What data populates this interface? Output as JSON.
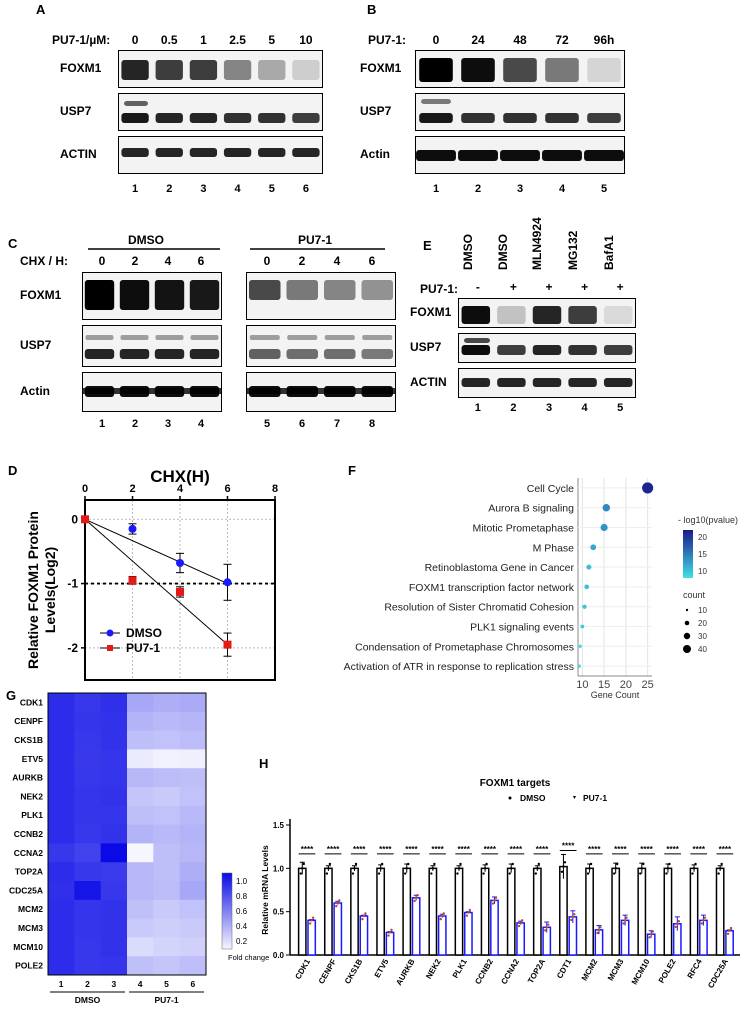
{
  "panel_a": {
    "letter": "A",
    "treatment_label": "PU7-1/µM:",
    "doses": [
      "0",
      "0.5",
      "1",
      "2.5",
      "5",
      "10"
    ],
    "blots": [
      "FOXM1",
      "USP7",
      "ACTIN"
    ],
    "lanes": [
      "1",
      "2",
      "3",
      "4",
      "5",
      "6"
    ]
  },
  "panel_b": {
    "letter": "B",
    "treatment_label": "PU7-1:",
    "times": [
      "0",
      "24",
      "48",
      "72",
      "96h"
    ],
    "blots": [
      "FOXM1",
      "USP7",
      "Actin"
    ],
    "lanes": [
      "1",
      "2",
      "3",
      "4",
      "5"
    ]
  },
  "panel_c": {
    "letter": "C",
    "group_dmso": "DMSO",
    "group_pu": "PU7-1",
    "chx_label": "CHX / H:",
    "times": [
      "0",
      "2",
      "4",
      "6",
      "0",
      "2",
      "4",
      "6"
    ],
    "blots": [
      "FOXM1",
      "USP7",
      "Actin"
    ],
    "lanes": [
      "1",
      "2",
      "3",
      "4",
      "5",
      "6",
      "7",
      "8"
    ]
  },
  "panel_e": {
    "letter": "E",
    "columns": [
      "DMSO",
      "DMSO",
      "MLN4924",
      "MG132",
      "BafA1"
    ],
    "pu_label": "PU7-1:",
    "pu_signs": [
      "-",
      "+",
      "+",
      "+",
      "+"
    ],
    "blots": [
      "FOXM1",
      "USP7",
      "ACTIN"
    ],
    "lanes": [
      "1",
      "2",
      "3",
      "4",
      "5"
    ]
  },
  "panel_d": {
    "letter": "D",
    "xlabel": "CHX(H)",
    "ylabel_1": "Relative FOXM1 Protein",
    "ylabel_2": "Levels(Log2)",
    "legend_dmso": "DMSO",
    "legend_pu": "PU7-1",
    "xticks": [
      "0",
      "2",
      "4",
      "6",
      "8"
    ],
    "yticks": [
      "0",
      "-1",
      "-2"
    ]
  },
  "panel_f": {
    "letter": "F",
    "terms": [
      "Cell Cycle",
      "Aurora B signaling",
      "Mitotic Prometaphase",
      "M Phase",
      "Retinoblastoma Gene in Cancer",
      "FOXM1 transcription factor network",
      "Resolution of Sister Chromatid Cohesion",
      "PLK1 signaling events",
      "Condensation of Prometaphase Chromosomes",
      "Activation of ATR in response to replication stress"
    ],
    "xlabel": "Gene Count",
    "xticks": [
      "10",
      "15",
      "20",
      "25"
    ],
    "legend_color_title": "- log10(pvalue)",
    "legend_color_ticks": [
      "20",
      "15",
      "10"
    ],
    "legend_size_title": "count",
    "legend_size_ticks": [
      "10",
      "20",
      "30",
      "40"
    ]
  },
  "panel_g": {
    "letter": "G",
    "genes": [
      "CDK1",
      "CENPF",
      "CKS1B",
      "ETV5",
      "AURKB",
      "NEK2",
      "PLK1",
      "CCNB2",
      "CCNA2",
      "TOP2A",
      "CDC25A",
      "MCM2",
      "MCM3",
      "MCM10",
      "POLE2"
    ],
    "columns": [
      "1",
      "2",
      "3",
      "4",
      "5",
      "6"
    ],
    "group_dmso": "DMSO",
    "group_pu": "PU7-1",
    "scale_ticks": [
      "1.0",
      "0.8",
      "0.6",
      "0.4",
      "0.2"
    ],
    "scale_label": "Fold change"
  },
  "panel_h": {
    "letter": "H",
    "title": "FOXM1 targets",
    "ylabel": "Relative mRNA Levels",
    "yticks": [
      "0.0",
      "0.5",
      "1.0",
      "1.5"
    ],
    "legend_dmso": "DMSO",
    "legend_pu": "PU7-1",
    "sig": "****"
  },
  "chart_data": [
    {
      "type": "line",
      "title": "",
      "xlabel": "CHX(H)",
      "ylabel": "Relative FOXM1 Protein Levels(Log2)",
      "xlim": [
        0,
        8
      ],
      "ylim": [
        -2.5,
        0.3
      ],
      "series": [
        {
          "name": "DMSO",
          "color": "#1a1aff",
          "x": [
            0,
            2,
            4,
            6
          ],
          "y": [
            0,
            -0.15,
            -0.68,
            -0.98
          ],
          "err": [
            0,
            0.08,
            0.15,
            0.28
          ],
          "fit": [
            [
              0,
              0
            ],
            [
              6,
              -1.0
            ]
          ]
        },
        {
          "name": "PU7-1",
          "color": "#e61919",
          "x": [
            0,
            2,
            4,
            6
          ],
          "y": [
            0,
            -0.95,
            -1.13,
            -1.95
          ],
          "err": [
            0,
            0.06,
            0.08,
            0.18
          ],
          "fit": [
            [
              0,
              0
            ],
            [
              6,
              -1.95
            ]
          ]
        }
      ],
      "reference_line_y": -1
    },
    {
      "type": "scatter",
      "title": "",
      "xlabel": "Gene Count",
      "xlim": [
        9,
        26
      ],
      "categories": [
        "Cell Cycle",
        "Aurora B signaling",
        "Mitotic Prometaphase",
        "M Phase",
        "Retinoblastoma Gene in Cancer",
        "FOXM1 transcription factor network",
        "Resolution of Sister Chromatid Cohesion",
        "PLK1 signaling events",
        "Condensation of Prometaphase Chromosomes",
        "Activation of ATR in response to replication stress"
      ],
      "gene_count": [
        25,
        15.5,
        15,
        12.5,
        11.5,
        11,
        10.5,
        10,
        9.5,
        9.3
      ],
      "neg_log10_p": [
        25,
        16,
        15,
        13,
        11,
        11,
        10.5,
        10,
        9,
        9
      ]
    },
    {
      "type": "heatmap",
      "rows": [
        "CDK1",
        "CENPF",
        "CKS1B",
        "ETV5",
        "AURKB",
        "NEK2",
        "PLK1",
        "CCNB2",
        "CCNA2",
        "TOP2A",
        "CDC25A",
        "MCM2",
        "MCM3",
        "MCM10",
        "POLE2"
      ],
      "columns": [
        "1",
        "2",
        "3",
        "4",
        "5",
        "6"
      ],
      "values": [
        [
          1.0,
          0.95,
          0.98,
          0.45,
          0.42,
          0.44
        ],
        [
          1.0,
          0.96,
          0.97,
          0.4,
          0.37,
          0.39
        ],
        [
          1.0,
          0.95,
          0.97,
          0.35,
          0.33,
          0.36
        ],
        [
          1.0,
          0.94,
          0.96,
          0.15,
          0.12,
          0.13
        ],
        [
          1.0,
          0.95,
          0.96,
          0.38,
          0.36,
          0.35
        ],
        [
          1.0,
          0.96,
          0.97,
          0.32,
          0.3,
          0.33
        ],
        [
          1.0,
          0.96,
          0.96,
          0.35,
          0.33,
          0.37
        ],
        [
          1.0,
          0.95,
          0.97,
          0.4,
          0.37,
          0.4
        ],
        [
          0.95,
          0.9,
          1.15,
          0.05,
          0.35,
          0.38
        ],
        [
          1.0,
          0.95,
          0.93,
          0.38,
          0.35,
          0.42
        ],
        [
          0.98,
          1.1,
          0.95,
          0.38,
          0.36,
          0.45
        ],
        [
          1.0,
          0.96,
          0.97,
          0.34,
          0.3,
          0.33
        ],
        [
          1.0,
          0.96,
          0.97,
          0.3,
          0.28,
          0.3
        ],
        [
          1.0,
          0.95,
          0.97,
          0.22,
          0.25,
          0.27
        ],
        [
          1.0,
          0.95,
          0.96,
          0.34,
          0.32,
          0.35
        ]
      ],
      "scale_range": [
        0.1,
        1.15
      ]
    },
    {
      "type": "bar",
      "title": "FOXM1 targets",
      "ylabel": "Relative mRNA Levels",
      "ylim": [
        0,
        1.5
      ],
      "categories": [
        "CDK1",
        "CENPF",
        "CKS1B",
        "ETV5",
        "AURKB",
        "NEK2",
        "PLK1",
        "CCNB2",
        "CCNA2",
        "TOP2A",
        "CDT1",
        "MCM2",
        "MCM3",
        "MCM10",
        "POLE2",
        "RFC4",
        "CDC25A"
      ],
      "series": [
        {
          "name": "DMSO",
          "color": "#000000",
          "values": [
            1.0,
            1.0,
            1.0,
            1.0,
            1.0,
            1.0,
            1.0,
            1.0,
            1.0,
            1.0,
            1.02,
            1.0,
            1.0,
            1.0,
            1.0,
            1.0,
            1.0
          ],
          "err": [
            0.07,
            0.03,
            0.03,
            0.04,
            0.05,
            0.03,
            0.03,
            0.04,
            0.05,
            0.03,
            0.14,
            0.05,
            0.06,
            0.06,
            0.05,
            0.04,
            0.03
          ]
        },
        {
          "name": "PU7-1",
          "color": "#1a1aff",
          "values": [
            0.4,
            0.6,
            0.45,
            0.26,
            0.66,
            0.45,
            0.49,
            0.63,
            0.37,
            0.32,
            0.44,
            0.29,
            0.4,
            0.24,
            0.36,
            0.4,
            0.28
          ],
          "err": [
            0.01,
            0.02,
            0.01,
            0.01,
            0.03,
            0.02,
            0.01,
            0.04,
            0.02,
            0.06,
            0.07,
            0.05,
            0.06,
            0.04,
            0.08,
            0.06,
            0.01
          ]
        }
      ]
    }
  ]
}
